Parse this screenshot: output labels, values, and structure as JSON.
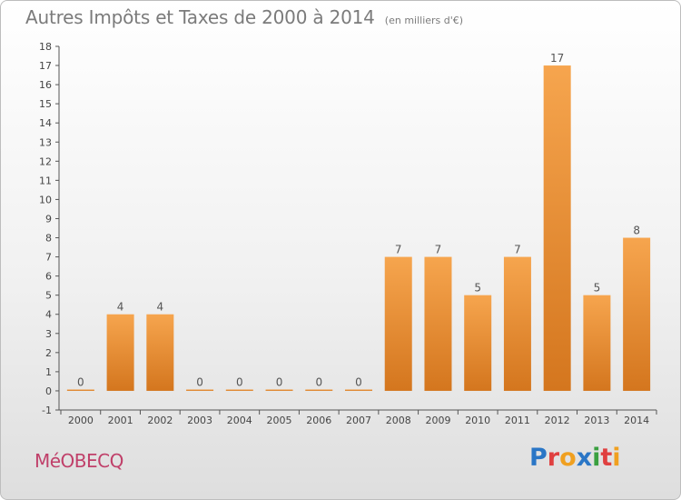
{
  "header": {
    "title": "Autres Impôts et Taxes de 2000 à 2014",
    "subtitle": "(en milliers d'€)"
  },
  "footer": {
    "commune": "MéOBECQ",
    "logo": "Proxiti",
    "logo_colors": [
      "#2a76c6",
      "#e04040",
      "#f0a020",
      "#2a76c6",
      "#3aa040",
      "#e04040",
      "#f0a020"
    ]
  },
  "colors": {
    "bar_top": "#f6a54e",
    "bar_bottom": "#d4761e",
    "axis": "#555555",
    "grid": "#d6d6d6",
    "title": "#7b7b7b",
    "commune": "#c0406a"
  },
  "chart_data": {
    "type": "bar",
    "title": "Autres Impôts et Taxes de 2000 à 2014",
    "subtitle": "(en milliers d'€)",
    "categories": [
      "2000",
      "2001",
      "2002",
      "2003",
      "2004",
      "2005",
      "2006",
      "2007",
      "2008",
      "2009",
      "2010",
      "2011",
      "2012",
      "2013",
      "2014"
    ],
    "values": [
      0,
      4,
      4,
      0,
      0,
      0,
      0,
      0,
      7,
      7,
      5,
      7,
      17,
      5,
      8
    ],
    "data_labels": [
      "0",
      "4",
      "4",
      "0",
      "0",
      "0",
      "0",
      "0",
      "7",
      "7",
      "5",
      "7",
      "17",
      "5",
      "8"
    ],
    "xlabel": "",
    "ylabel": "",
    "ylim": [
      -1,
      18
    ],
    "yticks": [
      -1,
      0,
      1,
      2,
      3,
      4,
      5,
      6,
      7,
      8,
      9,
      10,
      11,
      12,
      13,
      14,
      15,
      16,
      17,
      18
    ],
    "grid": false
  }
}
